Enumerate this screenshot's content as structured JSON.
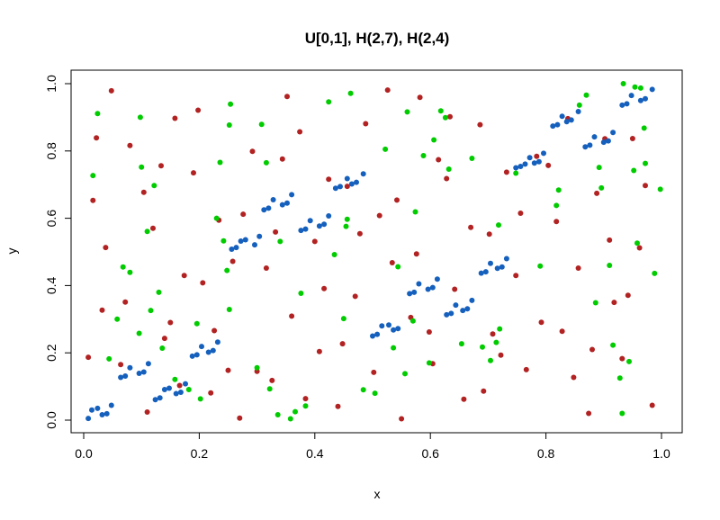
{
  "chart_data": {
    "type": "scatter",
    "title": "U[0,1], H(2,7), H(2,4)",
    "xlabel": "x",
    "ylabel": "y",
    "xlim": [
      0,
      1
    ],
    "ylim": [
      0,
      1
    ],
    "xticks": [
      "0.0",
      "0.2",
      "0.4",
      "0.6",
      "0.8",
      "1.0"
    ],
    "yticks": [
      "0.0",
      "0.2",
      "0.4",
      "0.6",
      "0.8",
      "1.0"
    ],
    "grid": false,
    "legend": "none",
    "series": [
      {
        "color": "#b22222",
        "points": [
          [
            0.008,
            0.187
          ],
          [
            0.016,
            0.653
          ],
          [
            0.022,
            0.839
          ],
          [
            0.032,
            0.327
          ],
          [
            0.038,
            0.513
          ],
          [
            0.048,
            0.979
          ],
          [
            0.064,
            0.165
          ],
          [
            0.072,
            0.351
          ],
          [
            0.08,
            0.816
          ],
          [
            0.104,
            0.677
          ],
          [
            0.11,
            0.024
          ],
          [
            0.12,
            0.57
          ],
          [
            0.134,
            0.756
          ],
          [
            0.14,
            0.243
          ],
          [
            0.15,
            0.29
          ],
          [
            0.158,
            0.897
          ],
          [
            0.166,
            0.103
          ],
          [
            0.174,
            0.43
          ],
          [
            0.19,
            0.735
          ],
          [
            0.198,
            0.921
          ],
          [
            0.206,
            0.408
          ],
          [
            0.22,
            0.081
          ],
          [
            0.226,
            0.266
          ],
          [
            0.234,
            0.594
          ],
          [
            0.25,
            0.148
          ],
          [
            0.258,
            0.472
          ],
          [
            0.27,
            0.006
          ],
          [
            0.276,
            0.612
          ],
          [
            0.292,
            0.799
          ],
          [
            0.3,
            0.145
          ],
          [
            0.316,
            0.452
          ],
          [
            0.326,
            0.118
          ],
          [
            0.332,
            0.559
          ],
          [
            0.344,
            0.776
          ],
          [
            0.352,
            0.962
          ],
          [
            0.36,
            0.309
          ],
          [
            0.374,
            0.857
          ],
          [
            0.384,
            0.064
          ],
          [
            0.4,
            0.531
          ],
          [
            0.408,
            0.204
          ],
          [
            0.416,
            0.391
          ],
          [
            0.424,
            0.716
          ],
          [
            0.44,
            0.041
          ],
          [
            0.448,
            0.227
          ],
          [
            0.456,
            0.695
          ],
          [
            0.47,
            0.368
          ],
          [
            0.478,
            0.554
          ],
          [
            0.488,
            0.881
          ],
          [
            0.502,
            0.142
          ],
          [
            0.512,
            0.608
          ],
          [
            0.526,
            0.981
          ],
          [
            0.534,
            0.468
          ],
          [
            0.542,
            0.654
          ],
          [
            0.55,
            0.004
          ],
          [
            0.566,
            0.305
          ],
          [
            0.576,
            0.494
          ],
          [
            0.582,
            0.959
          ],
          [
            0.598,
            0.262
          ],
          [
            0.604,
            0.168
          ],
          [
            0.614,
            0.774
          ],
          [
            0.628,
            0.718
          ],
          [
            0.634,
            0.902
          ],
          [
            0.642,
            0.389
          ],
          [
            0.658,
            0.062
          ],
          [
            0.67,
            0.573
          ],
          [
            0.686,
            0.878
          ],
          [
            0.692,
            0.086
          ],
          [
            0.702,
            0.553
          ],
          [
            0.708,
            0.256
          ],
          [
            0.722,
            0.193
          ],
          [
            0.732,
            0.737
          ],
          [
            0.748,
            0.43
          ],
          [
            0.756,
            0.615
          ],
          [
            0.766,
            0.15
          ],
          [
            0.784,
            0.784
          ],
          [
            0.792,
            0.291
          ],
          [
            0.804,
            0.757
          ],
          [
            0.818,
            0.59
          ],
          [
            0.828,
            0.264
          ],
          [
            0.838,
            0.896
          ],
          [
            0.848,
            0.127
          ],
          [
            0.856,
            0.452
          ],
          [
            0.874,
            0.02
          ],
          [
            0.88,
            0.21
          ],
          [
            0.888,
            0.674
          ],
          [
            0.902,
            0.836
          ],
          [
            0.91,
            0.535
          ],
          [
            0.918,
            0.35
          ],
          [
            0.932,
            0.183
          ],
          [
            0.942,
            0.371
          ],
          [
            0.95,
            0.837
          ],
          [
            0.962,
            0.512
          ],
          [
            0.972,
            0.697
          ],
          [
            0.984,
            0.044
          ]
        ]
      },
      {
        "color": "#00cc00",
        "points": [
          [
            0.016,
            0.727
          ],
          [
            0.024,
            0.911
          ],
          [
            0.044,
            0.182
          ],
          [
            0.058,
            0.3
          ],
          [
            0.068,
            0.455
          ],
          [
            0.08,
            0.439
          ],
          [
            0.096,
            0.258
          ],
          [
            0.098,
            0.9
          ],
          [
            0.1,
            0.752
          ],
          [
            0.11,
            0.561
          ],
          [
            0.116,
            0.326
          ],
          [
            0.122,
            0.697
          ],
          [
            0.13,
            0.38
          ],
          [
            0.136,
            0.214
          ],
          [
            0.158,
            0.121
          ],
          [
            0.182,
            0.091
          ],
          [
            0.196,
            0.287
          ],
          [
            0.202,
            0.063
          ],
          [
            0.23,
            0.6
          ],
          [
            0.236,
            0.766
          ],
          [
            0.242,
            0.533
          ],
          [
            0.248,
            0.445
          ],
          [
            0.252,
            0.329
          ],
          [
            0.252,
            0.877
          ],
          [
            0.254,
            0.939
          ],
          [
            0.3,
            0.156
          ],
          [
            0.308,
            0.879
          ],
          [
            0.316,
            0.765
          ],
          [
            0.322,
            0.093
          ],
          [
            0.336,
            0.016
          ],
          [
            0.34,
            0.531
          ],
          [
            0.358,
            0.004
          ],
          [
            0.366,
            0.025
          ],
          [
            0.376,
            0.377
          ],
          [
            0.384,
            0.042
          ],
          [
            0.424,
            0.946
          ],
          [
            0.434,
            0.492
          ],
          [
            0.45,
            0.302
          ],
          [
            0.454,
            0.576
          ],
          [
            0.456,
            0.597
          ],
          [
            0.462,
            0.971
          ],
          [
            0.484,
            0.09
          ],
          [
            0.504,
            0.08
          ],
          [
            0.522,
            0.805
          ],
          [
            0.536,
            0.215
          ],
          [
            0.544,
            0.456
          ],
          [
            0.556,
            0.138
          ],
          [
            0.56,
            0.916
          ],
          [
            0.57,
            0.295
          ],
          [
            0.574,
            0.619
          ],
          [
            0.588,
            0.786
          ],
          [
            0.598,
            0.17
          ],
          [
            0.606,
            0.833
          ],
          [
            0.618,
            0.919
          ],
          [
            0.626,
            0.899
          ],
          [
            0.632,
            0.746
          ],
          [
            0.654,
            0.227
          ],
          [
            0.672,
            0.778
          ],
          [
            0.69,
            0.217
          ],
          [
            0.704,
            0.177
          ],
          [
            0.714,
            0.231
          ],
          [
            0.718,
            0.58
          ],
          [
            0.72,
            0.271
          ],
          [
            0.748,
            0.734
          ],
          [
            0.79,
            0.458
          ],
          [
            0.818,
            0.638
          ],
          [
            0.822,
            0.684
          ],
          [
            0.858,
            0.936
          ],
          [
            0.87,
            0.966
          ],
          [
            0.886,
            0.349
          ],
          [
            0.892,
            0.751
          ],
          [
            0.896,
            0.69
          ],
          [
            0.91,
            0.46
          ],
          [
            0.916,
            0.223
          ],
          [
            0.928,
            0.125
          ],
          [
            0.934,
            1.0
          ],
          [
            0.944,
            0.174
          ],
          [
            0.952,
            0.742
          ],
          [
            0.954,
            0.99
          ],
          [
            0.958,
            0.526
          ],
          [
            0.964,
            0.987
          ],
          [
            0.97,
            0.868
          ],
          [
            0.972,
            0.763
          ],
          [
            0.988,
            0.436
          ],
          [
            0.998,
            0.686
          ],
          [
            0.932,
            0.02
          ]
        ]
      },
      {
        "color": "#1560bd",
        "points": [
          [
            0.008,
            0.005
          ],
          [
            0.014,
            0.03
          ],
          [
            0.024,
            0.035
          ],
          [
            0.032,
            0.016
          ],
          [
            0.04,
            0.019
          ],
          [
            0.048,
            0.044
          ],
          [
            0.064,
            0.127
          ],
          [
            0.072,
            0.131
          ],
          [
            0.08,
            0.156
          ],
          [
            0.096,
            0.139
          ],
          [
            0.104,
            0.143
          ],
          [
            0.112,
            0.168
          ],
          [
            0.124,
            0.061
          ],
          [
            0.132,
            0.066
          ],
          [
            0.14,
            0.091
          ],
          [
            0.148,
            0.095
          ],
          [
            0.16,
            0.079
          ],
          [
            0.168,
            0.083
          ],
          [
            0.176,
            0.108
          ],
          [
            0.188,
            0.19
          ],
          [
            0.196,
            0.194
          ],
          [
            0.204,
            0.219
          ],
          [
            0.216,
            0.202
          ],
          [
            0.224,
            0.207
          ],
          [
            0.232,
            0.232
          ],
          [
            0.256,
            0.508
          ],
          [
            0.264,
            0.513
          ],
          [
            0.272,
            0.532
          ],
          [
            0.28,
            0.536
          ],
          [
            0.296,
            0.521
          ],
          [
            0.304,
            0.546
          ],
          [
            0.312,
            0.625
          ],
          [
            0.32,
            0.63
          ],
          [
            0.328,
            0.655
          ],
          [
            0.344,
            0.64
          ],
          [
            0.352,
            0.645
          ],
          [
            0.36,
            0.67
          ],
          [
            0.376,
            0.564
          ],
          [
            0.384,
            0.568
          ],
          [
            0.392,
            0.593
          ],
          [
            0.408,
            0.577
          ],
          [
            0.416,
            0.582
          ],
          [
            0.424,
            0.607
          ],
          [
            0.436,
            0.689
          ],
          [
            0.444,
            0.694
          ],
          [
            0.456,
            0.718
          ],
          [
            0.464,
            0.702
          ],
          [
            0.472,
            0.707
          ],
          [
            0.484,
            0.732
          ],
          [
            0.5,
            0.25
          ],
          [
            0.508,
            0.255
          ],
          [
            0.516,
            0.28
          ],
          [
            0.528,
            0.283
          ],
          [
            0.536,
            0.268
          ],
          [
            0.544,
            0.272
          ],
          [
            0.564,
            0.376
          ],
          [
            0.572,
            0.38
          ],
          [
            0.58,
            0.405
          ],
          [
            0.596,
            0.389
          ],
          [
            0.604,
            0.394
          ],
          [
            0.612,
            0.419
          ],
          [
            0.628,
            0.313
          ],
          [
            0.636,
            0.317
          ],
          [
            0.644,
            0.342
          ],
          [
            0.656,
            0.326
          ],
          [
            0.664,
            0.331
          ],
          [
            0.672,
            0.356
          ],
          [
            0.688,
            0.437
          ],
          [
            0.696,
            0.441
          ],
          [
            0.704,
            0.466
          ],
          [
            0.716,
            0.451
          ],
          [
            0.724,
            0.455
          ],
          [
            0.732,
            0.48
          ],
          [
            0.748,
            0.75
          ],
          [
            0.756,
            0.754
          ],
          [
            0.764,
            0.761
          ],
          [
            0.772,
            0.78
          ],
          [
            0.78,
            0.764
          ],
          [
            0.788,
            0.768
          ],
          [
            0.796,
            0.793
          ],
          [
            0.812,
            0.874
          ],
          [
            0.82,
            0.878
          ],
          [
            0.828,
            0.903
          ],
          [
            0.836,
            0.887
          ],
          [
            0.844,
            0.892
          ],
          [
            0.856,
            0.917
          ],
          [
            0.868,
            0.812
          ],
          [
            0.876,
            0.817
          ],
          [
            0.884,
            0.842
          ],
          [
            0.9,
            0.826
          ],
          [
            0.908,
            0.83
          ],
          [
            0.916,
            0.855
          ],
          [
            0.932,
            0.936
          ],
          [
            0.94,
            0.94
          ],
          [
            0.948,
            0.965
          ],
          [
            0.964,
            0.95
          ],
          [
            0.972,
            0.955
          ],
          [
            0.984,
            0.983
          ]
        ]
      }
    ]
  }
}
